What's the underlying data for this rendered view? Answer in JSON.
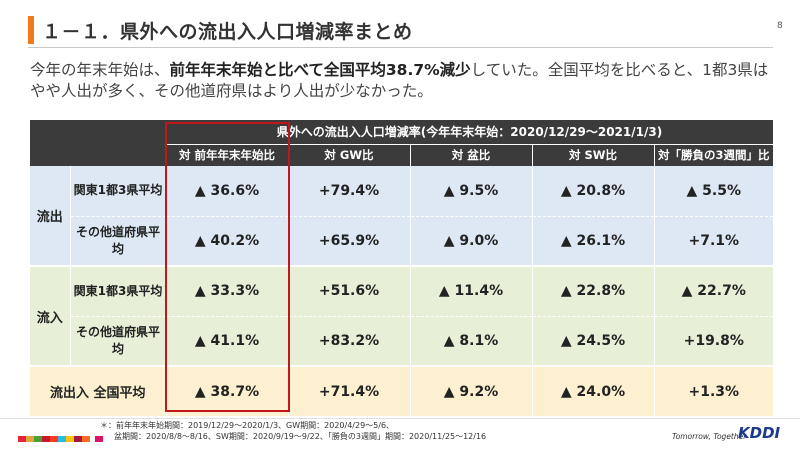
{
  "slide": {
    "title": "１－１．県外への流出入人口増減率まとめ",
    "page_number": "8",
    "summary_pre": "今年の年末年始は、",
    "summary_bold": "前年年末年始と比べて全国平均38.7%減少",
    "summary_post": "していた。全国平均を比べると、1都3県はやや人出が多く、その他道府県はより人出が少なかった。"
  },
  "table": {
    "header_main": "県外への流出入人口増減率(今年年末年始：2020/12/29～2021/1/3)",
    "columns": [
      "対 前年年末年始比",
      "対 GW比",
      "対 盆比",
      "対 SW比",
      "対「勝負の3週間」比"
    ],
    "groups": [
      {
        "label": "流出",
        "rows": [
          {
            "label": "関東1都3県平均",
            "values": [
              "▲ 36.6%",
              "+79.4%",
              "▲ 9.5%",
              "▲ 20.8%",
              "▲ 5.5%"
            ]
          },
          {
            "label": "その他道府県平均",
            "values": [
              "▲ 40.2%",
              "+65.9%",
              "▲ 9.0%",
              "▲ 26.1%",
              "+7.1%"
            ]
          }
        ]
      },
      {
        "label": "流入",
        "rows": [
          {
            "label": "関東1都3県平均",
            "values": [
              "▲ 33.3%",
              "+51.6%",
              "▲ 11.4%",
              "▲ 22.8%",
              "▲ 22.7%"
            ]
          },
          {
            "label": "その他道府県平均",
            "values": [
              "▲ 41.1%",
              "+83.2%",
              "▲ 8.1%",
              "▲ 24.5%",
              "+19.8%"
            ]
          }
        ]
      }
    ],
    "total": {
      "label": "流出入 全国平均",
      "values": [
        "▲ 38.7%",
        "+71.4%",
        "▲ 9.2%",
        "▲ 24.0%",
        "+1.3%"
      ]
    }
  },
  "footer": {
    "note_line1": "＊：前年年末年始期間：2019/12/29～2020/1/3、GW期間：2020/4/29～5/6、",
    "note_line2": "盆期間：2020/8/8～8/16、SW期間：2020/9/19～9/22、「勝負の3週間」期間：2020/11/25～12/16",
    "tagline": "Tomorrow, Together",
    "brand": "KDDI"
  },
  "colors": {
    "accent": "#f07a1a",
    "header_bg": "#3b3b3b",
    "outflow_bg": "#dde8f4",
    "inflow_bg": "#e7efd6",
    "total_bg": "#fdf0d0",
    "highlight": "#c0161c"
  }
}
